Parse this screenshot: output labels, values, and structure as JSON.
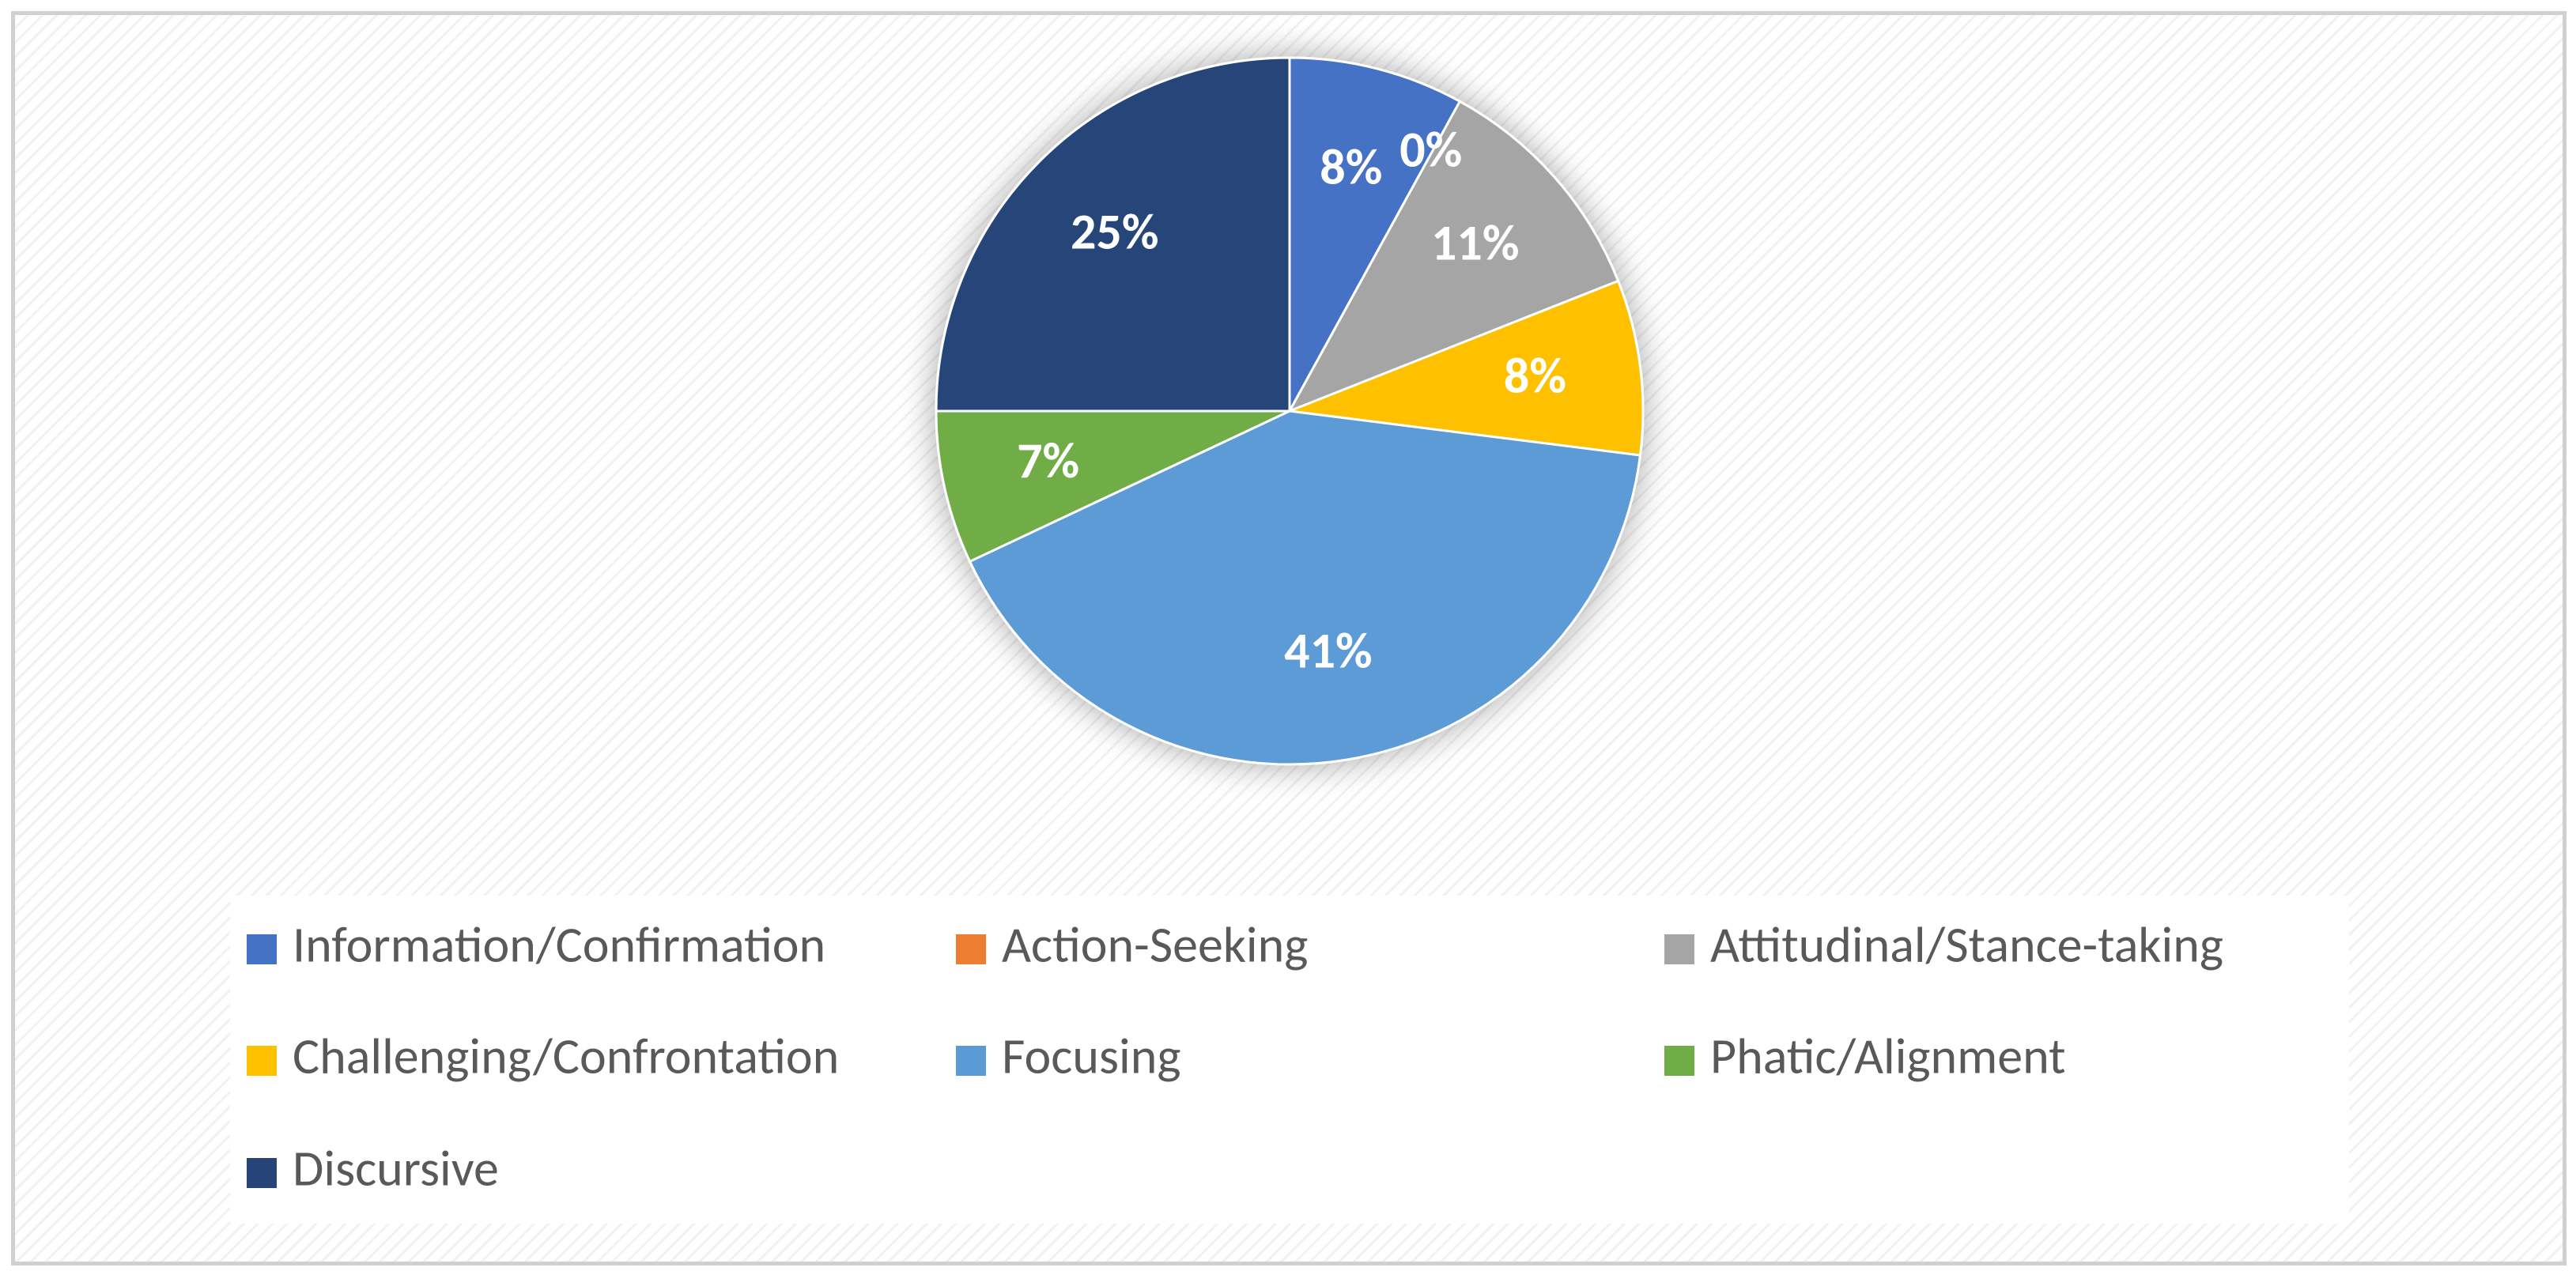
{
  "chart_data": {
    "type": "pie",
    "categories": [
      "Information/Confirmation",
      "Action-Seeking",
      "Attitudinal/Stance-taking",
      "Challenging/Confrontation",
      "Focusing",
      "Phatic/Alignment",
      "Discursive"
    ],
    "values": [
      8,
      0,
      11,
      8,
      41,
      7,
      25
    ],
    "value_labels": [
      "8%",
      "0%",
      "11%",
      "8%",
      "41%",
      "7%",
      "25%"
    ],
    "colors": [
      "#4472c4",
      "#ed7d31",
      "#a5a5a5",
      "#ffc000",
      "#5b9bd5",
      "#70ad47",
      "#264478"
    ],
    "legend": "bottom"
  }
}
